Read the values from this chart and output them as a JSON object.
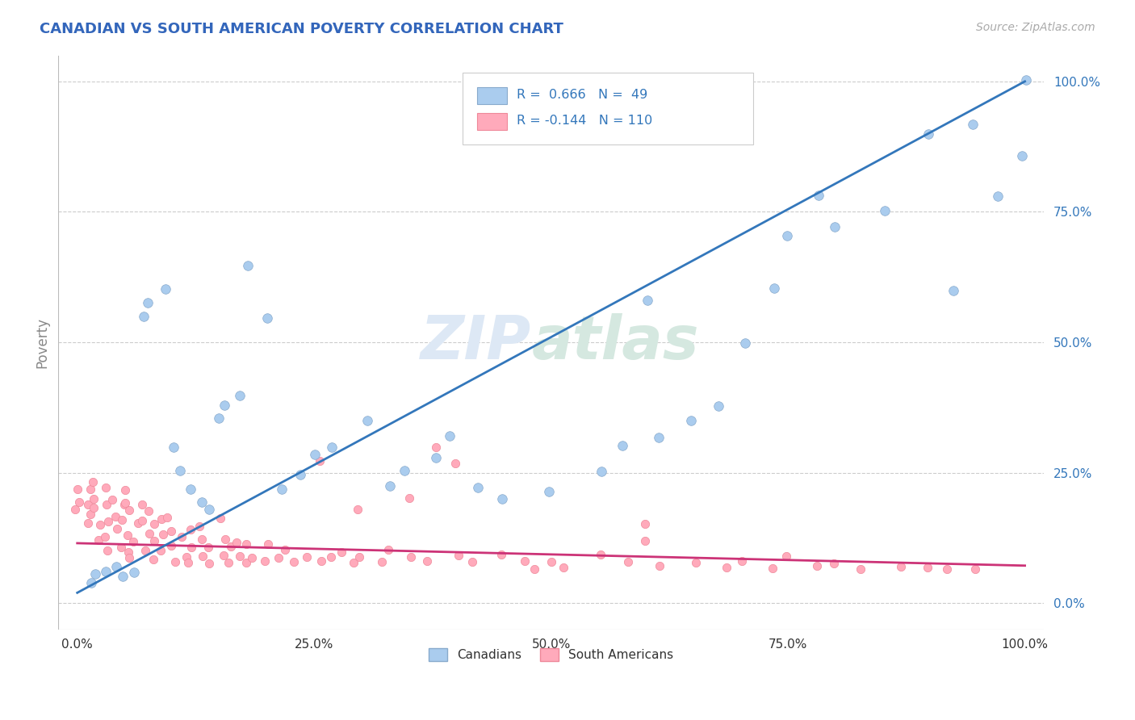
{
  "title": "CANADIAN VS SOUTH AMERICAN POVERTY CORRELATION CHART",
  "source": "Source: ZipAtlas.com",
  "ylabel": "Poverty",
  "title_color": "#3366bb",
  "source_color": "#aaaaaa",
  "axis_label_color": "#888888",
  "background_color": "#ffffff",
  "grid_color": "#cccccc",
  "watermark_text": "ZIPatlas",
  "canadians": {
    "label": "Canadians",
    "R": 0.666,
    "N": 49,
    "dot_color": "#aaccee",
    "dot_edge": "#88aacc",
    "line_color": "#3377bb",
    "scatter_x": [
      0.01,
      0.02,
      0.03,
      0.04,
      0.05,
      0.06,
      0.07,
      0.08,
      0.09,
      0.1,
      0.11,
      0.12,
      0.13,
      0.14,
      0.15,
      0.16,
      0.17,
      0.18,
      0.2,
      0.22,
      0.23,
      0.25,
      0.27,
      0.3,
      0.33,
      0.35,
      0.38,
      0.4,
      0.42,
      0.45,
      0.5,
      0.55,
      0.58,
      0.6,
      0.62,
      0.65,
      0.68,
      0.7,
      0.73,
      0.75,
      0.78,
      0.8,
      0.85,
      0.9,
      0.93,
      0.95,
      0.97,
      0.99,
      1.0
    ],
    "scatter_y": [
      0.04,
      0.05,
      0.06,
      0.07,
      0.05,
      0.06,
      0.55,
      0.58,
      0.6,
      0.3,
      0.25,
      0.22,
      0.2,
      0.18,
      0.35,
      0.38,
      0.4,
      0.65,
      0.55,
      0.22,
      0.25,
      0.28,
      0.3,
      0.35,
      0.22,
      0.25,
      0.28,
      0.32,
      0.22,
      0.2,
      0.22,
      0.25,
      0.3,
      0.58,
      0.32,
      0.35,
      0.38,
      0.5,
      0.6,
      0.7,
      0.78,
      0.72,
      0.75,
      0.9,
      0.6,
      0.92,
      0.78,
      0.85,
      1.0
    ]
  },
  "south_americans": {
    "label": "South Americans",
    "R": -0.144,
    "N": 110,
    "dot_color": "#ffaabb",
    "dot_edge": "#ee8899",
    "line_color": "#cc3377",
    "scatter_x": [
      0.0,
      0.0,
      0.0,
      0.01,
      0.01,
      0.01,
      0.01,
      0.02,
      0.02,
      0.02,
      0.02,
      0.02,
      0.03,
      0.03,
      0.03,
      0.03,
      0.03,
      0.04,
      0.04,
      0.04,
      0.04,
      0.05,
      0.05,
      0.05,
      0.05,
      0.05,
      0.06,
      0.06,
      0.06,
      0.06,
      0.07,
      0.07,
      0.07,
      0.07,
      0.08,
      0.08,
      0.08,
      0.08,
      0.09,
      0.09,
      0.09,
      0.1,
      0.1,
      0.1,
      0.11,
      0.11,
      0.12,
      0.12,
      0.12,
      0.13,
      0.13,
      0.13,
      0.14,
      0.14,
      0.15,
      0.15,
      0.16,
      0.16,
      0.17,
      0.17,
      0.18,
      0.18,
      0.19,
      0.2,
      0.2,
      0.21,
      0.22,
      0.23,
      0.24,
      0.25,
      0.26,
      0.27,
      0.28,
      0.29,
      0.3,
      0.32,
      0.33,
      0.35,
      0.37,
      0.38,
      0.4,
      0.42,
      0.45,
      0.47,
      0.48,
      0.5,
      0.52,
      0.55,
      0.58,
      0.6,
      0.62,
      0.65,
      0.68,
      0.7,
      0.73,
      0.75,
      0.78,
      0.8,
      0.83,
      0.87,
      0.9,
      0.92,
      0.95,
      0.6,
      0.4,
      0.35,
      0.3,
      0.15,
      0.1,
      0.05
    ],
    "scatter_y": [
      0.18,
      0.2,
      0.22,
      0.15,
      0.17,
      0.19,
      0.22,
      0.12,
      0.15,
      0.18,
      0.2,
      0.23,
      0.1,
      0.13,
      0.16,
      0.19,
      0.22,
      0.11,
      0.14,
      0.17,
      0.2,
      0.1,
      0.13,
      0.16,
      0.19,
      0.22,
      0.09,
      0.12,
      0.15,
      0.18,
      0.1,
      0.13,
      0.16,
      0.19,
      0.09,
      0.12,
      0.15,
      0.18,
      0.1,
      0.13,
      0.16,
      0.08,
      0.11,
      0.14,
      0.09,
      0.12,
      0.08,
      0.11,
      0.14,
      0.09,
      0.12,
      0.15,
      0.08,
      0.11,
      0.09,
      0.12,
      0.08,
      0.11,
      0.09,
      0.12,
      0.08,
      0.11,
      0.09,
      0.08,
      0.11,
      0.09,
      0.1,
      0.08,
      0.09,
      0.27,
      0.08,
      0.09,
      0.1,
      0.08,
      0.09,
      0.08,
      0.1,
      0.09,
      0.08,
      0.3,
      0.09,
      0.08,
      0.09,
      0.08,
      0.07,
      0.08,
      0.07,
      0.09,
      0.08,
      0.15,
      0.07,
      0.08,
      0.07,
      0.08,
      0.07,
      0.08,
      0.07,
      0.08,
      0.07,
      0.07,
      0.07,
      0.07,
      0.07,
      0.12,
      0.27,
      0.2,
      0.18,
      0.16,
      0.17,
      0.19
    ]
  },
  "xlim": [
    -0.02,
    1.02
  ],
  "ylim": [
    -0.05,
    1.05
  ],
  "xticks": [
    0.0,
    0.25,
    0.5,
    0.75,
    1.0
  ],
  "xticklabels": [
    "0.0%",
    "25.0%",
    "50.0%",
    "75.0%",
    "100.0%"
  ],
  "yticks_right": [
    0.0,
    0.25,
    0.5,
    0.75,
    1.0
  ],
  "yticklabels_right": [
    "0.0%",
    "25.0%",
    "50.0%",
    "75.0%",
    "100.0%"
  ],
  "ca_line_x": [
    0.0,
    1.0
  ],
  "ca_line_y": [
    0.02,
    1.0
  ],
  "sa_line_x": [
    0.0,
    1.0
  ],
  "sa_line_y": [
    0.115,
    0.072
  ]
}
